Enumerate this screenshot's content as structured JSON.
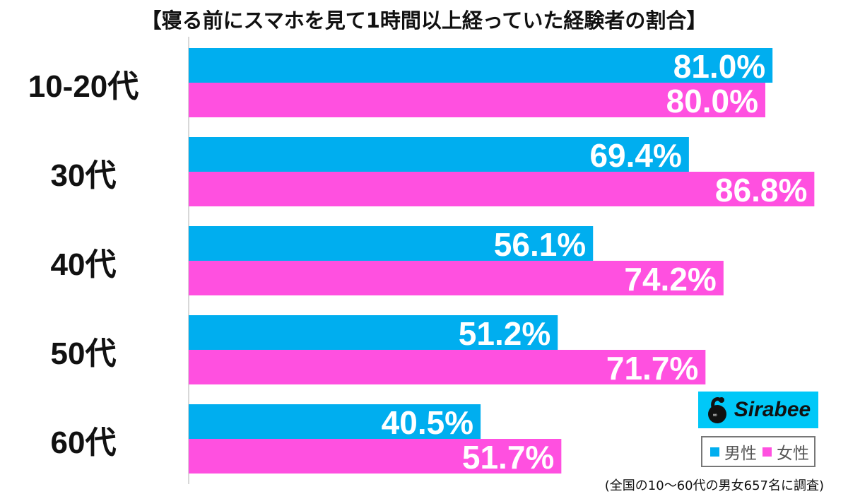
{
  "title": "【寝る前にスマホを見て1時間以上経っていた経験者の割合】",
  "note": "(全国の10〜60代の男女657名に調査)",
  "logo_text": "Sirabee",
  "colors": {
    "male": "#00AEEF",
    "female": "#FF50E0",
    "axis": "#cccccc"
  },
  "chart_data": {
    "type": "bar",
    "orientation": "horizontal",
    "categories": [
      "10-20代",
      "30代",
      "40代",
      "50代",
      "60代"
    ],
    "series": [
      {
        "name": "男性",
        "values": [
          81.0,
          69.4,
          56.1,
          51.2,
          40.5
        ]
      },
      {
        "name": "女性",
        "values": [
          80.0,
          86.8,
          74.2,
          71.7,
          51.7
        ]
      }
    ],
    "unit": "%",
    "xlim": [
      0,
      90
    ],
    "grid": false,
    "legend_position": "bottom-right"
  }
}
